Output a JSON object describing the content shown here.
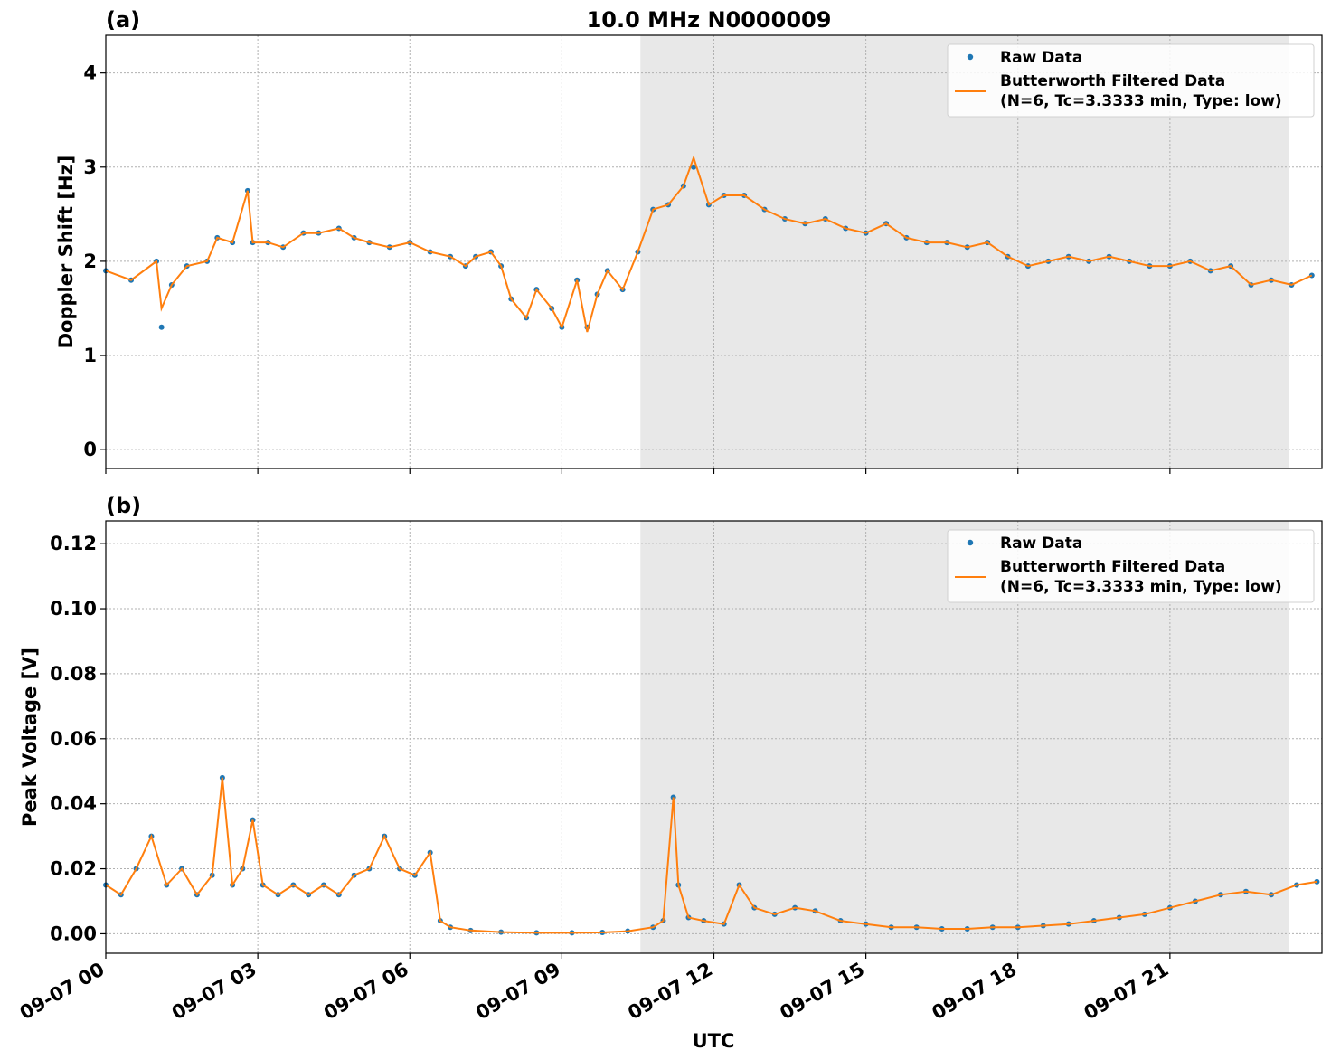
{
  "figure": {
    "title": "10.0 MHz N0000009",
    "xlabel": "UTC",
    "x_tick_labels": [
      "09-07 00",
      "09-07 03",
      "09-07 06",
      "09-07 09",
      "09-07 12",
      "09-07 15",
      "09-07 18",
      "09-07 21"
    ]
  },
  "chart_data": [
    {
      "type": "scatter",
      "panel_label": "(a)",
      "title": "10.0 MHz N0000009",
      "xlabel": "UTC",
      "ylabel": "Doppler Shift [Hz]",
      "x_unit": "hours UTC on 09-07",
      "xlim": [
        0,
        24
      ],
      "ylim": [
        -0.2,
        4.4
      ],
      "y_ticks": [
        0,
        1,
        2,
        3,
        4
      ],
      "y_tick_labels": [
        "0",
        "1",
        "2",
        "3",
        "4"
      ],
      "grid": true,
      "legend_position": "top-right",
      "shaded_region": {
        "x_start": 10.55,
        "x_end": 23.35,
        "color": "#e8e8e8"
      },
      "legend": {
        "raw": "Raw Data",
        "filtered_line1": "Butterworth Filtered Data",
        "filtered_line2": "(N=6, Tc=3.3333 min, Type: low)"
      },
      "series": [
        {
          "name": "Raw Data",
          "kind": "points",
          "color": "#1f77b4",
          "x": [
            0.0,
            0.5,
            1.0,
            1.1,
            1.3,
            1.6,
            2.0,
            2.2,
            2.5,
            2.8,
            2.9,
            3.2,
            3.5,
            3.9,
            4.2,
            4.6,
            4.9,
            5.2,
            5.6,
            6.0,
            6.4,
            6.8,
            7.1,
            7.3,
            7.6,
            7.8,
            8.0,
            8.3,
            8.5,
            8.8,
            9.0,
            9.3,
            9.5,
            9.7,
            9.9,
            10.2,
            10.5,
            10.8,
            11.1,
            11.4,
            11.6,
            11.9,
            12.2,
            12.6,
            13.0,
            13.4,
            13.8,
            14.2,
            14.6,
            15.0,
            15.4,
            15.8,
            16.2,
            16.6,
            17.0,
            17.4,
            17.8,
            18.2,
            18.6,
            19.0,
            19.4,
            19.8,
            20.2,
            20.6,
            21.0,
            21.4,
            21.8,
            22.2,
            22.6,
            23.0,
            23.4,
            23.8
          ],
          "y": [
            1.9,
            1.8,
            2.0,
            1.3,
            1.75,
            1.95,
            2.0,
            2.25,
            2.2,
            2.75,
            2.2,
            2.2,
            2.15,
            2.3,
            2.3,
            2.35,
            2.25,
            2.2,
            2.15,
            2.2,
            2.1,
            2.05,
            1.95,
            2.05,
            2.1,
            1.95,
            1.6,
            1.4,
            1.7,
            1.5,
            1.3,
            1.8,
            1.3,
            1.65,
            1.9,
            1.7,
            2.1,
            2.55,
            2.6,
            2.8,
            3.0,
            2.6,
            2.7,
            2.7,
            2.55,
            2.45,
            2.4,
            2.45,
            2.35,
            2.3,
            2.4,
            2.25,
            2.2,
            2.2,
            2.15,
            2.2,
            2.05,
            1.95,
            2.0,
            2.05,
            2.0,
            2.05,
            2.0,
            1.95,
            1.95,
            2.0,
            1.9,
            1.95,
            1.75,
            1.8,
            1.75,
            1.85
          ]
        },
        {
          "name": "Butterworth Filtered Data",
          "kind": "line",
          "color": "#ff7f0e",
          "x": [
            0.0,
            0.5,
            1.0,
            1.1,
            1.3,
            1.6,
            2.0,
            2.2,
            2.5,
            2.8,
            2.9,
            3.2,
            3.5,
            3.9,
            4.2,
            4.6,
            4.9,
            5.2,
            5.6,
            6.0,
            6.4,
            6.8,
            7.1,
            7.3,
            7.6,
            7.8,
            8.0,
            8.3,
            8.5,
            8.8,
            9.0,
            9.3,
            9.5,
            9.7,
            9.9,
            10.2,
            10.5,
            10.8,
            11.1,
            11.4,
            11.6,
            11.9,
            12.2,
            12.6,
            13.0,
            13.4,
            13.8,
            14.2,
            14.6,
            15.0,
            15.4,
            15.8,
            16.2,
            16.6,
            17.0,
            17.4,
            17.8,
            18.2,
            18.6,
            19.0,
            19.4,
            19.8,
            20.2,
            20.6,
            21.0,
            21.4,
            21.8,
            22.2,
            22.6,
            23.0,
            23.4,
            23.8
          ],
          "y": [
            1.9,
            1.8,
            2.0,
            1.5,
            1.75,
            1.95,
            2.0,
            2.25,
            2.2,
            2.75,
            2.2,
            2.2,
            2.15,
            2.3,
            2.3,
            2.35,
            2.25,
            2.2,
            2.15,
            2.2,
            2.1,
            2.05,
            1.95,
            2.05,
            2.1,
            1.95,
            1.6,
            1.4,
            1.7,
            1.5,
            1.3,
            1.8,
            1.25,
            1.65,
            1.9,
            1.7,
            2.1,
            2.55,
            2.6,
            2.8,
            3.1,
            2.6,
            2.7,
            2.7,
            2.55,
            2.45,
            2.4,
            2.45,
            2.35,
            2.3,
            2.4,
            2.25,
            2.2,
            2.2,
            2.15,
            2.2,
            2.05,
            1.95,
            2.0,
            2.05,
            2.0,
            2.05,
            2.0,
            1.95,
            1.95,
            2.0,
            1.9,
            1.95,
            1.75,
            1.8,
            1.75,
            1.85
          ]
        }
      ]
    },
    {
      "type": "scatter",
      "panel_label": "(b)",
      "xlabel": "UTC",
      "ylabel": "Peak Voltage [V]",
      "x_unit": "hours UTC on 09-07",
      "xlim": [
        0,
        24
      ],
      "ylim": [
        -0.006,
        0.127
      ],
      "y_ticks": [
        0.0,
        0.02,
        0.04,
        0.06,
        0.08,
        0.1,
        0.12
      ],
      "y_tick_labels": [
        "0.00",
        "0.02",
        "0.04",
        "0.06",
        "0.08",
        "0.10",
        "0.12"
      ],
      "grid": true,
      "legend_position": "top-right",
      "shaded_region": {
        "x_start": 10.55,
        "x_end": 23.35,
        "color": "#e8e8e8"
      },
      "legend": {
        "raw": "Raw Data",
        "filtered_line1": "Butterworth Filtered Data",
        "filtered_line2": "(N=6, Tc=3.3333 min, Type: low)"
      },
      "series": [
        {
          "name": "Raw Data",
          "kind": "points",
          "color": "#1f77b4",
          "x": [
            0.0,
            0.3,
            0.6,
            0.9,
            1.2,
            1.5,
            1.8,
            2.1,
            2.3,
            2.5,
            2.7,
            2.9,
            3.1,
            3.4,
            3.7,
            4.0,
            4.3,
            4.6,
            4.9,
            5.2,
            5.5,
            5.8,
            6.1,
            6.4,
            6.6,
            6.8,
            7.2,
            7.8,
            8.5,
            9.2,
            9.8,
            10.3,
            10.8,
            11.0,
            11.2,
            11.3,
            11.5,
            11.8,
            12.2,
            12.5,
            12.8,
            13.2,
            13.6,
            14.0,
            14.5,
            15.0,
            15.5,
            16.0,
            16.5,
            17.0,
            17.5,
            18.0,
            18.5,
            19.0,
            19.5,
            20.0,
            20.5,
            21.0,
            21.5,
            22.0,
            22.5,
            23.0,
            23.5,
            23.9
          ],
          "y": [
            0.015,
            0.012,
            0.02,
            0.03,
            0.015,
            0.02,
            0.012,
            0.018,
            0.048,
            0.015,
            0.02,
            0.035,
            0.015,
            0.012,
            0.015,
            0.012,
            0.015,
            0.012,
            0.018,
            0.02,
            0.03,
            0.02,
            0.018,
            0.025,
            0.004,
            0.002,
            0.001,
            0.0005,
            0.0003,
            0.0003,
            0.0004,
            0.0008,
            0.002,
            0.004,
            0.042,
            0.015,
            0.005,
            0.004,
            0.003,
            0.015,
            0.008,
            0.006,
            0.008,
            0.007,
            0.004,
            0.003,
            0.002,
            0.002,
            0.0015,
            0.0015,
            0.002,
            0.002,
            0.0025,
            0.003,
            0.004,
            0.005,
            0.006,
            0.008,
            0.01,
            0.012,
            0.013,
            0.012,
            0.015,
            0.016
          ]
        },
        {
          "name": "Butterworth Filtered Data",
          "kind": "line",
          "color": "#ff7f0e",
          "x": [
            0.0,
            0.3,
            0.6,
            0.9,
            1.2,
            1.5,
            1.8,
            2.1,
            2.3,
            2.5,
            2.7,
            2.9,
            3.1,
            3.4,
            3.7,
            4.0,
            4.3,
            4.6,
            4.9,
            5.2,
            5.5,
            5.8,
            6.1,
            6.4,
            6.6,
            6.8,
            7.2,
            7.8,
            8.5,
            9.2,
            9.8,
            10.3,
            10.8,
            11.0,
            11.2,
            11.3,
            11.5,
            11.8,
            12.2,
            12.5,
            12.8,
            13.2,
            13.6,
            14.0,
            14.5,
            15.0,
            15.5,
            16.0,
            16.5,
            17.0,
            17.5,
            18.0,
            18.5,
            19.0,
            19.5,
            20.0,
            20.5,
            21.0,
            21.5,
            22.0,
            22.5,
            23.0,
            23.5,
            23.9
          ],
          "y": [
            0.015,
            0.012,
            0.02,
            0.03,
            0.015,
            0.02,
            0.012,
            0.018,
            0.048,
            0.015,
            0.02,
            0.035,
            0.015,
            0.012,
            0.015,
            0.012,
            0.015,
            0.012,
            0.018,
            0.02,
            0.03,
            0.02,
            0.018,
            0.025,
            0.004,
            0.002,
            0.001,
            0.0005,
            0.0003,
            0.0003,
            0.0004,
            0.0008,
            0.002,
            0.004,
            0.042,
            0.015,
            0.005,
            0.004,
            0.003,
            0.015,
            0.008,
            0.006,
            0.008,
            0.007,
            0.004,
            0.003,
            0.002,
            0.002,
            0.0015,
            0.0015,
            0.002,
            0.002,
            0.0025,
            0.003,
            0.004,
            0.005,
            0.006,
            0.008,
            0.01,
            0.012,
            0.013,
            0.012,
            0.015,
            0.016
          ]
        }
      ]
    }
  ]
}
